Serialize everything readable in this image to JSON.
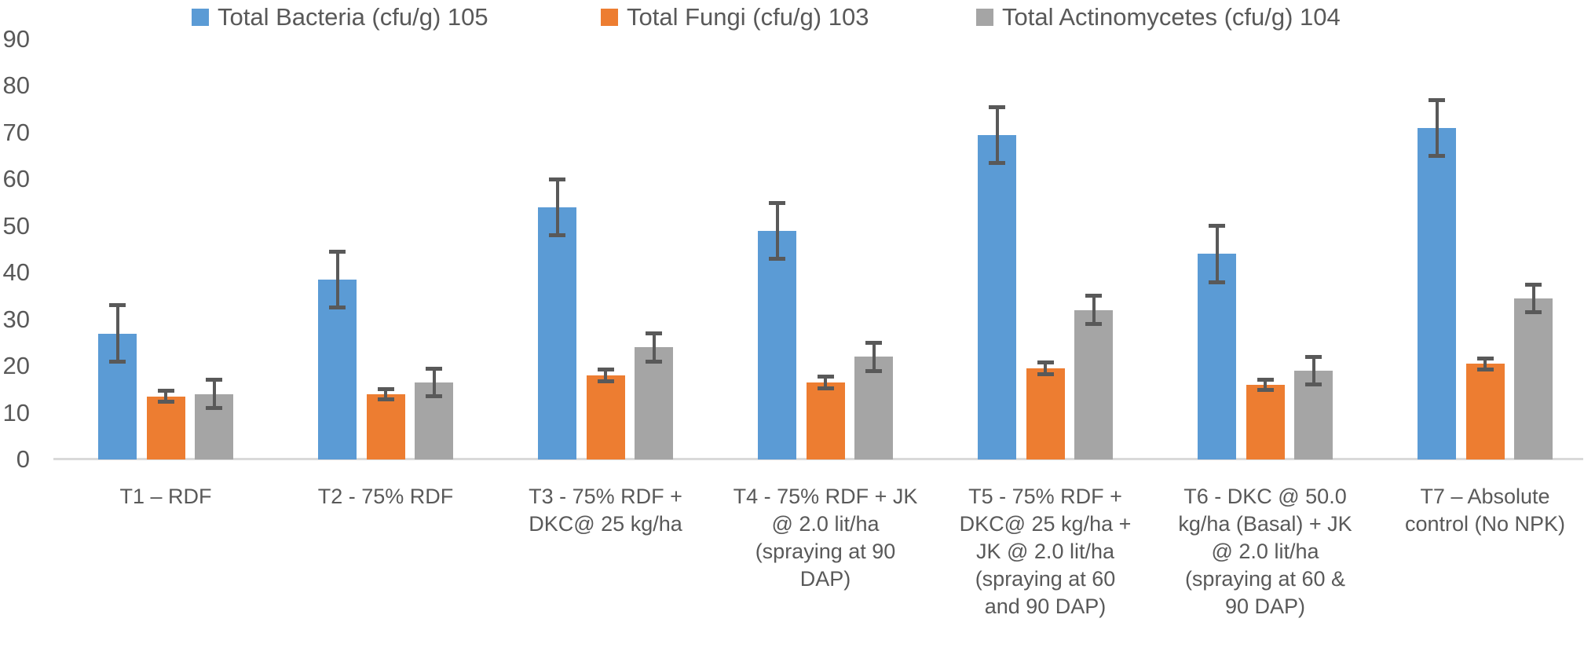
{
  "chart_data": {
    "type": "bar",
    "title": "",
    "legend_position": "top",
    "grid": false,
    "xlabel": "",
    "ylabel": "",
    "ylim": [
      0,
      90
    ],
    "yticks": [
      0,
      10,
      20,
      30,
      40,
      50,
      60,
      70,
      80,
      90
    ],
    "categories": [
      "T1 – RDF",
      "T2 - 75% RDF",
      "T3 - 75% RDF +\nDKC@ 25 kg/ha",
      "T4 - 75% RDF + JK\n@ 2.0 lit/ha\n(spraying at 90\nDAP)",
      "T5 - 75% RDF +\nDKC@ 25 kg/ha +\nJK @ 2.0 lit/ha\n(spraying at 60\nand 90 DAP)",
      "T6 - DKC @ 50.0\nkg/ha (Basal) + JK\n@ 2.0 lit/ha\n(spraying at 60 &\n90 DAP)",
      "T7 – Absolute\ncontrol (No NPK)"
    ],
    "series": [
      {
        "name": "Total Bacteria (cfu/g) 105",
        "color": "#5B9BD5",
        "values": [
          27,
          38.5,
          54,
          49,
          69.5,
          44,
          71
        ],
        "errors": [
          6,
          6,
          6,
          6,
          6,
          6,
          6
        ]
      },
      {
        "name": "Total Fungi (cfu/g) 103",
        "color": "#ED7D31",
        "values": [
          13.5,
          14,
          18,
          16.5,
          19.5,
          16,
          20.5
        ],
        "errors": [
          1.2,
          1.1,
          1.3,
          1.2,
          1.2,
          1.1,
          1.2
        ]
      },
      {
        "name": "Total Actinomycetes (cfu/g) 104",
        "color": "#A5A5A5",
        "values": [
          14,
          16.5,
          24,
          22,
          32,
          19,
          34.5
        ],
        "errors": [
          3,
          3,
          3,
          3,
          3,
          3,
          3
        ]
      }
    ],
    "colors": {
      "error_bar": "#595959",
      "axis_text": "#595959",
      "axis_line": "#D9D9D9",
      "background": "#FFFFFF"
    }
  }
}
